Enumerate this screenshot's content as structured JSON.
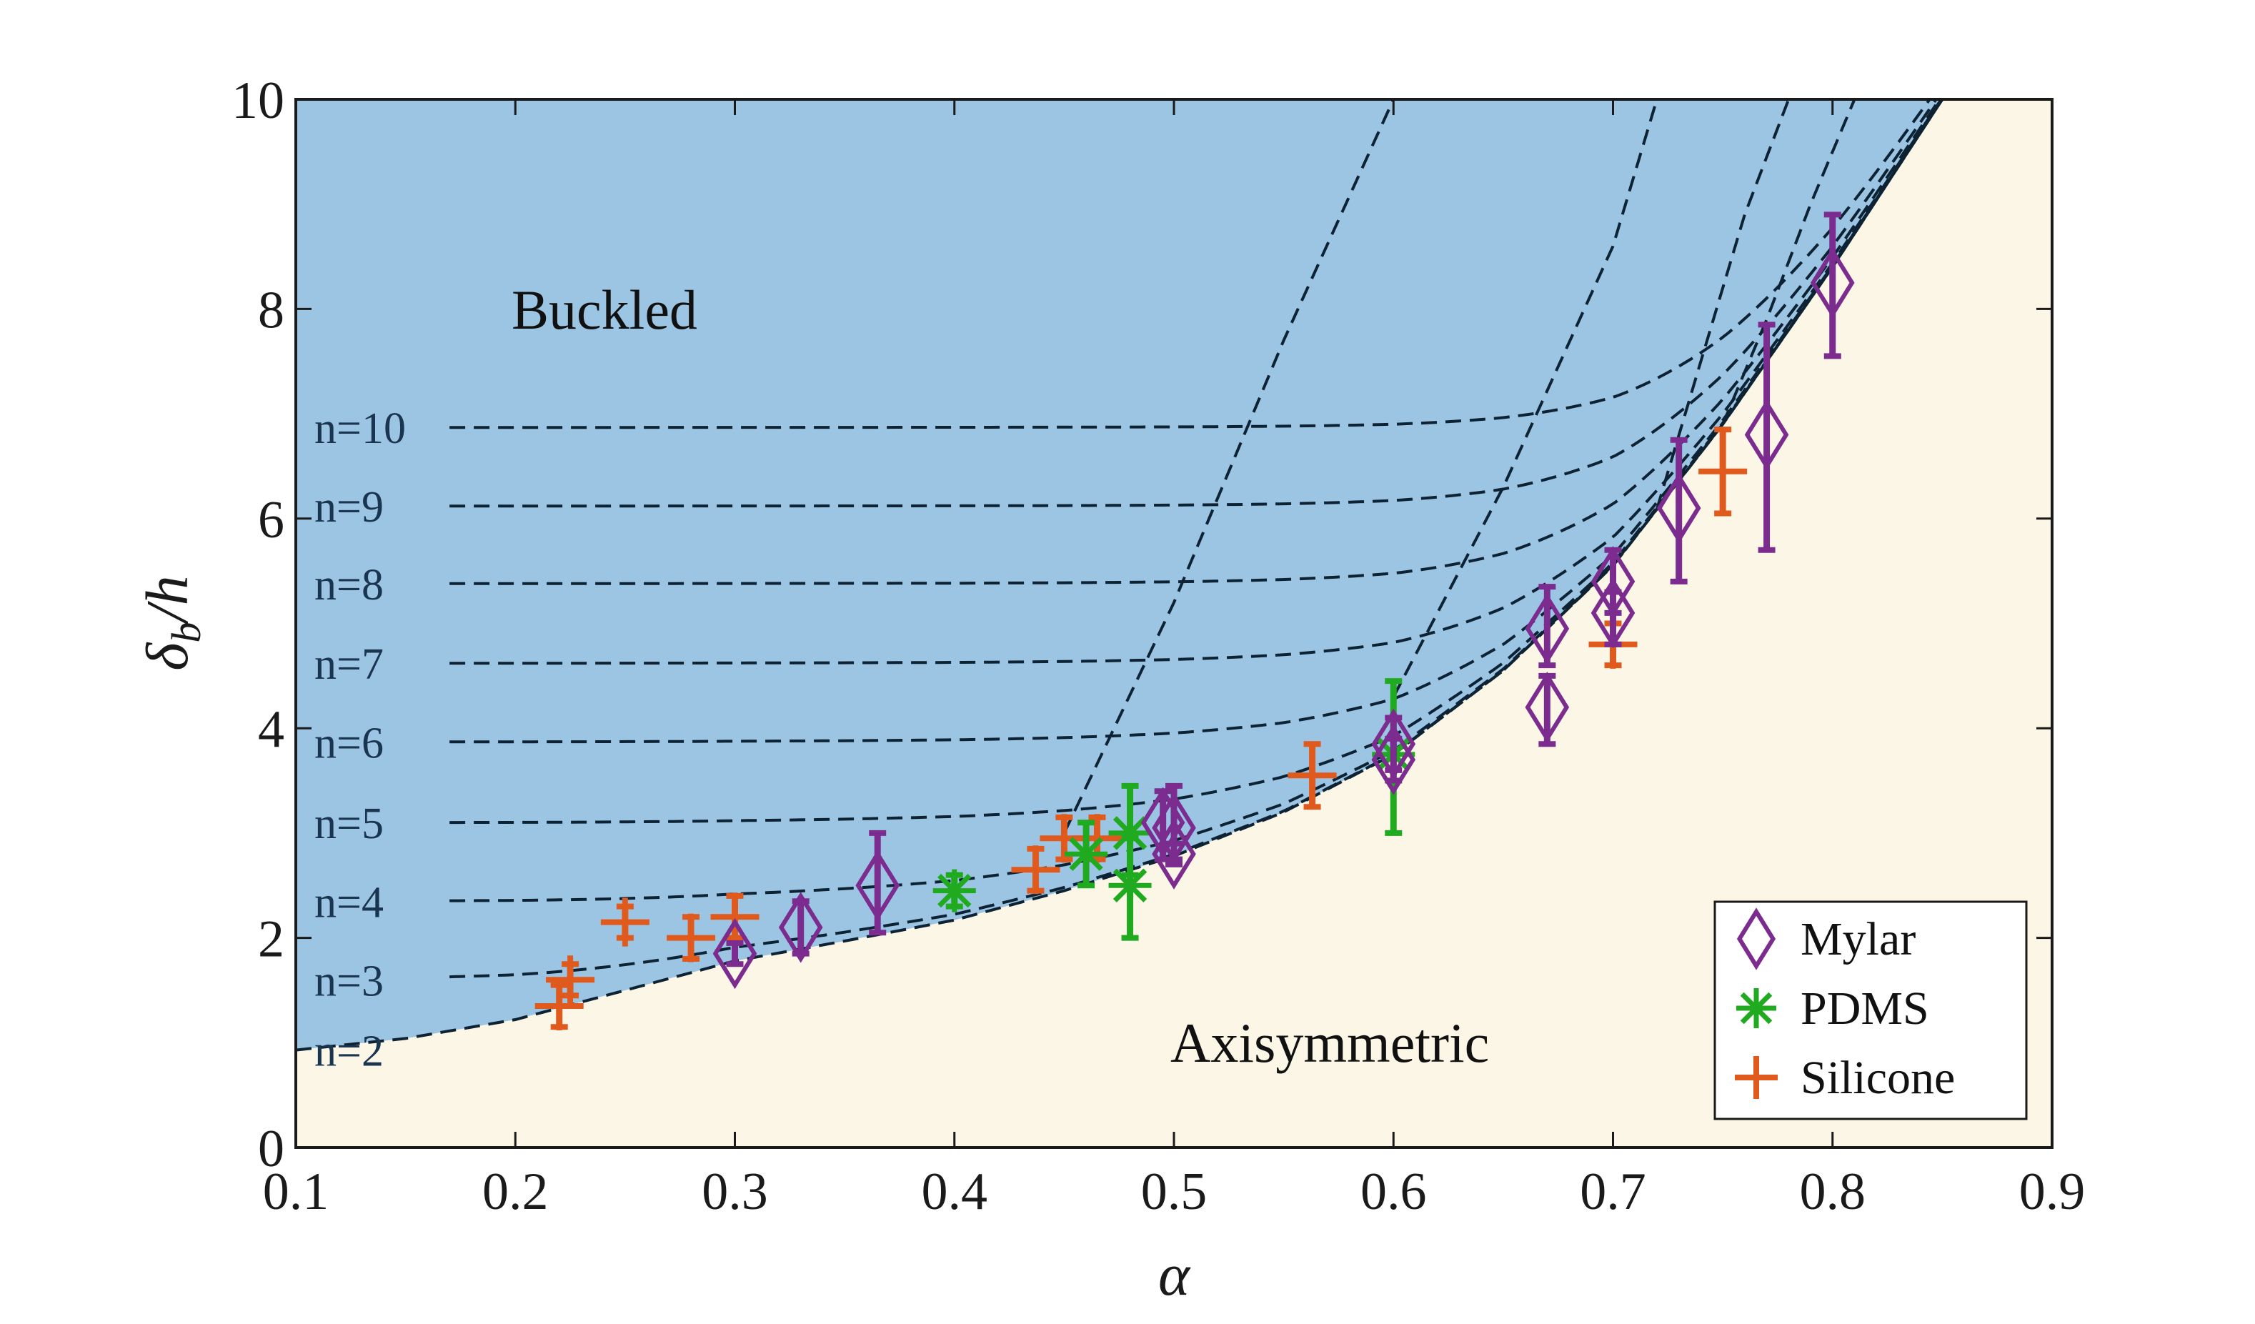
{
  "chart_data": {
    "type": "scatter",
    "title": "",
    "xlabel": "α",
    "ylabel_main": "δ",
    "ylabel_sub": "b",
    "ylabel_tail": "/h",
    "xlim": [
      0.1,
      0.9
    ],
    "ylim": [
      0,
      10
    ],
    "xticks": [
      0.1,
      0.2,
      0.3,
      0.4,
      0.5,
      0.6,
      0.7,
      0.8,
      0.9
    ],
    "xtick_labels": [
      "0.1",
      "0.2",
      "0.3",
      "0.4",
      "0.5",
      "0.6",
      "0.7",
      "0.8",
      "0.9"
    ],
    "yticks": [
      0,
      2,
      4,
      6,
      8,
      10
    ],
    "ytick_labels": [
      "0",
      "2",
      "4",
      "6",
      "8",
      "10"
    ],
    "grid": false,
    "legend_position": "bottom-right",
    "regions": {
      "buckled_label": "Buckled",
      "axisymmetric_label": "Axisymmetric",
      "buckled_color": "#9cc5e4",
      "axisymmetric_color": "#fcf6e6"
    },
    "threshold_curve": {
      "x": [
        0.1,
        0.15,
        0.2,
        0.25,
        0.3,
        0.35,
        0.4,
        0.45,
        0.5,
        0.55,
        0.6,
        0.65,
        0.7,
        0.75,
        0.8,
        0.85
      ],
      "y": [
        0.93,
        1.04,
        1.22,
        1.5,
        1.78,
        1.97,
        2.17,
        2.45,
        2.78,
        3.2,
        3.75,
        4.55,
        5.55,
        6.9,
        8.4,
        10.0
      ]
    },
    "mode_labels": [
      "n=2",
      "n=3",
      "n=4",
      "n=5",
      "n=6",
      "n=7",
      "n=8",
      "n=9",
      "n=10"
    ],
    "mode_plateaus": [
      0.93,
      1.6,
      2.35,
      3.1,
      3.87,
      4.62,
      5.38,
      6.12,
      6.87
    ],
    "steep_curves": [
      {
        "x": [
          0.45,
          0.5,
          0.55,
          0.6
        ],
        "y": [
          3.0,
          5.2,
          7.7,
          10.0
        ]
      },
      {
        "x": [
          0.6,
          0.65,
          0.7,
          0.72
        ],
        "y": [
          4.3,
          6.3,
          8.6,
          10.0
        ]
      },
      {
        "x": [
          0.72,
          0.74,
          0.76,
          0.78
        ],
        "y": [
          5.8,
          7.5,
          8.9,
          10.0
        ]
      },
      {
        "x": [
          0.75,
          0.77,
          0.79,
          0.81
        ],
        "y": [
          6.6,
          7.9,
          9.0,
          10.0
        ]
      }
    ],
    "legend": [
      "Mylar",
      "PDMS",
      "Silicone"
    ],
    "series": [
      {
        "name": "Mylar",
        "marker": "diamond",
        "color": "#7b2c8e",
        "points": [
          {
            "x": 0.3,
            "y": 1.85,
            "lo": 1.75,
            "hi": 1.95
          },
          {
            "x": 0.33,
            "y": 2.1,
            "lo": 1.85,
            "hi": 2.35
          },
          {
            "x": 0.365,
            "y": 2.5,
            "lo": 2.05,
            "hi": 3.0
          },
          {
            "x": 0.495,
            "y": 3.1,
            "lo": 2.75,
            "hi": 3.4
          },
          {
            "x": 0.5,
            "y": 3.05,
            "lo": 2.75,
            "hi": 3.45
          },
          {
            "x": 0.5,
            "y": 2.8,
            "lo": 2.7,
            "hi": 2.9
          },
          {
            "x": 0.6,
            "y": 3.85,
            "lo": 3.6,
            "hi": 4.1
          },
          {
            "x": 0.6,
            "y": 3.7,
            "lo": 3.5,
            "hi": 3.9
          },
          {
            "x": 0.67,
            "y": 4.95,
            "lo": 4.6,
            "hi": 5.35
          },
          {
            "x": 0.67,
            "y": 4.2,
            "lo": 3.85,
            "hi": 4.5
          },
          {
            "x": 0.7,
            "y": 5.4,
            "lo": 5.1,
            "hi": 5.7
          },
          {
            "x": 0.7,
            "y": 5.1,
            "lo": 4.8,
            "hi": 5.3
          },
          {
            "x": 0.73,
            "y": 6.1,
            "lo": 5.4,
            "hi": 6.75
          },
          {
            "x": 0.77,
            "y": 6.8,
            "lo": 5.7,
            "hi": 7.85
          },
          {
            "x": 0.8,
            "y": 8.25,
            "lo": 7.55,
            "hi": 8.9
          }
        ]
      },
      {
        "name": "PDMS",
        "marker": "asterisk",
        "color": "#1faa1f",
        "points": [
          {
            "x": 0.4,
            "y": 2.45,
            "lo": 2.3,
            "hi": 2.6
          },
          {
            "x": 0.46,
            "y": 2.8,
            "lo": 2.5,
            "hi": 3.1
          },
          {
            "x": 0.48,
            "y": 3.0,
            "lo": 2.6,
            "hi": 3.45
          },
          {
            "x": 0.48,
            "y": 2.5,
            "lo": 2.0,
            "hi": 2.95
          },
          {
            "x": 0.6,
            "y": 3.75,
            "lo": 3.0,
            "hi": 4.45
          }
        ]
      },
      {
        "name": "Silicone",
        "marker": "plus",
        "color": "#e05a1e",
        "points": [
          {
            "x": 0.22,
            "y": 1.35,
            "lo": 1.15,
            "hi": 1.55
          },
          {
            "x": 0.225,
            "y": 1.6,
            "lo": 1.45,
            "hi": 1.75
          },
          {
            "x": 0.25,
            "y": 2.15,
            "lo": 2.0,
            "hi": 2.3
          },
          {
            "x": 0.28,
            "y": 2.0,
            "lo": 1.8,
            "hi": 2.2
          },
          {
            "x": 0.3,
            "y": 2.2,
            "lo": 2.0,
            "hi": 2.4
          },
          {
            "x": 0.437,
            "y": 2.65,
            "lo": 2.45,
            "hi": 2.85
          },
          {
            "x": 0.45,
            "y": 2.95,
            "lo": 2.75,
            "hi": 3.15
          },
          {
            "x": 0.465,
            "y": 2.95,
            "lo": 2.75,
            "hi": 3.15
          },
          {
            "x": 0.563,
            "y": 3.55,
            "lo": 3.25,
            "hi": 3.85
          },
          {
            "x": 0.7,
            "y": 4.8,
            "lo": 4.6,
            "hi": 5.0
          },
          {
            "x": 0.75,
            "y": 6.45,
            "lo": 6.05,
            "hi": 6.85
          }
        ]
      }
    ]
  }
}
